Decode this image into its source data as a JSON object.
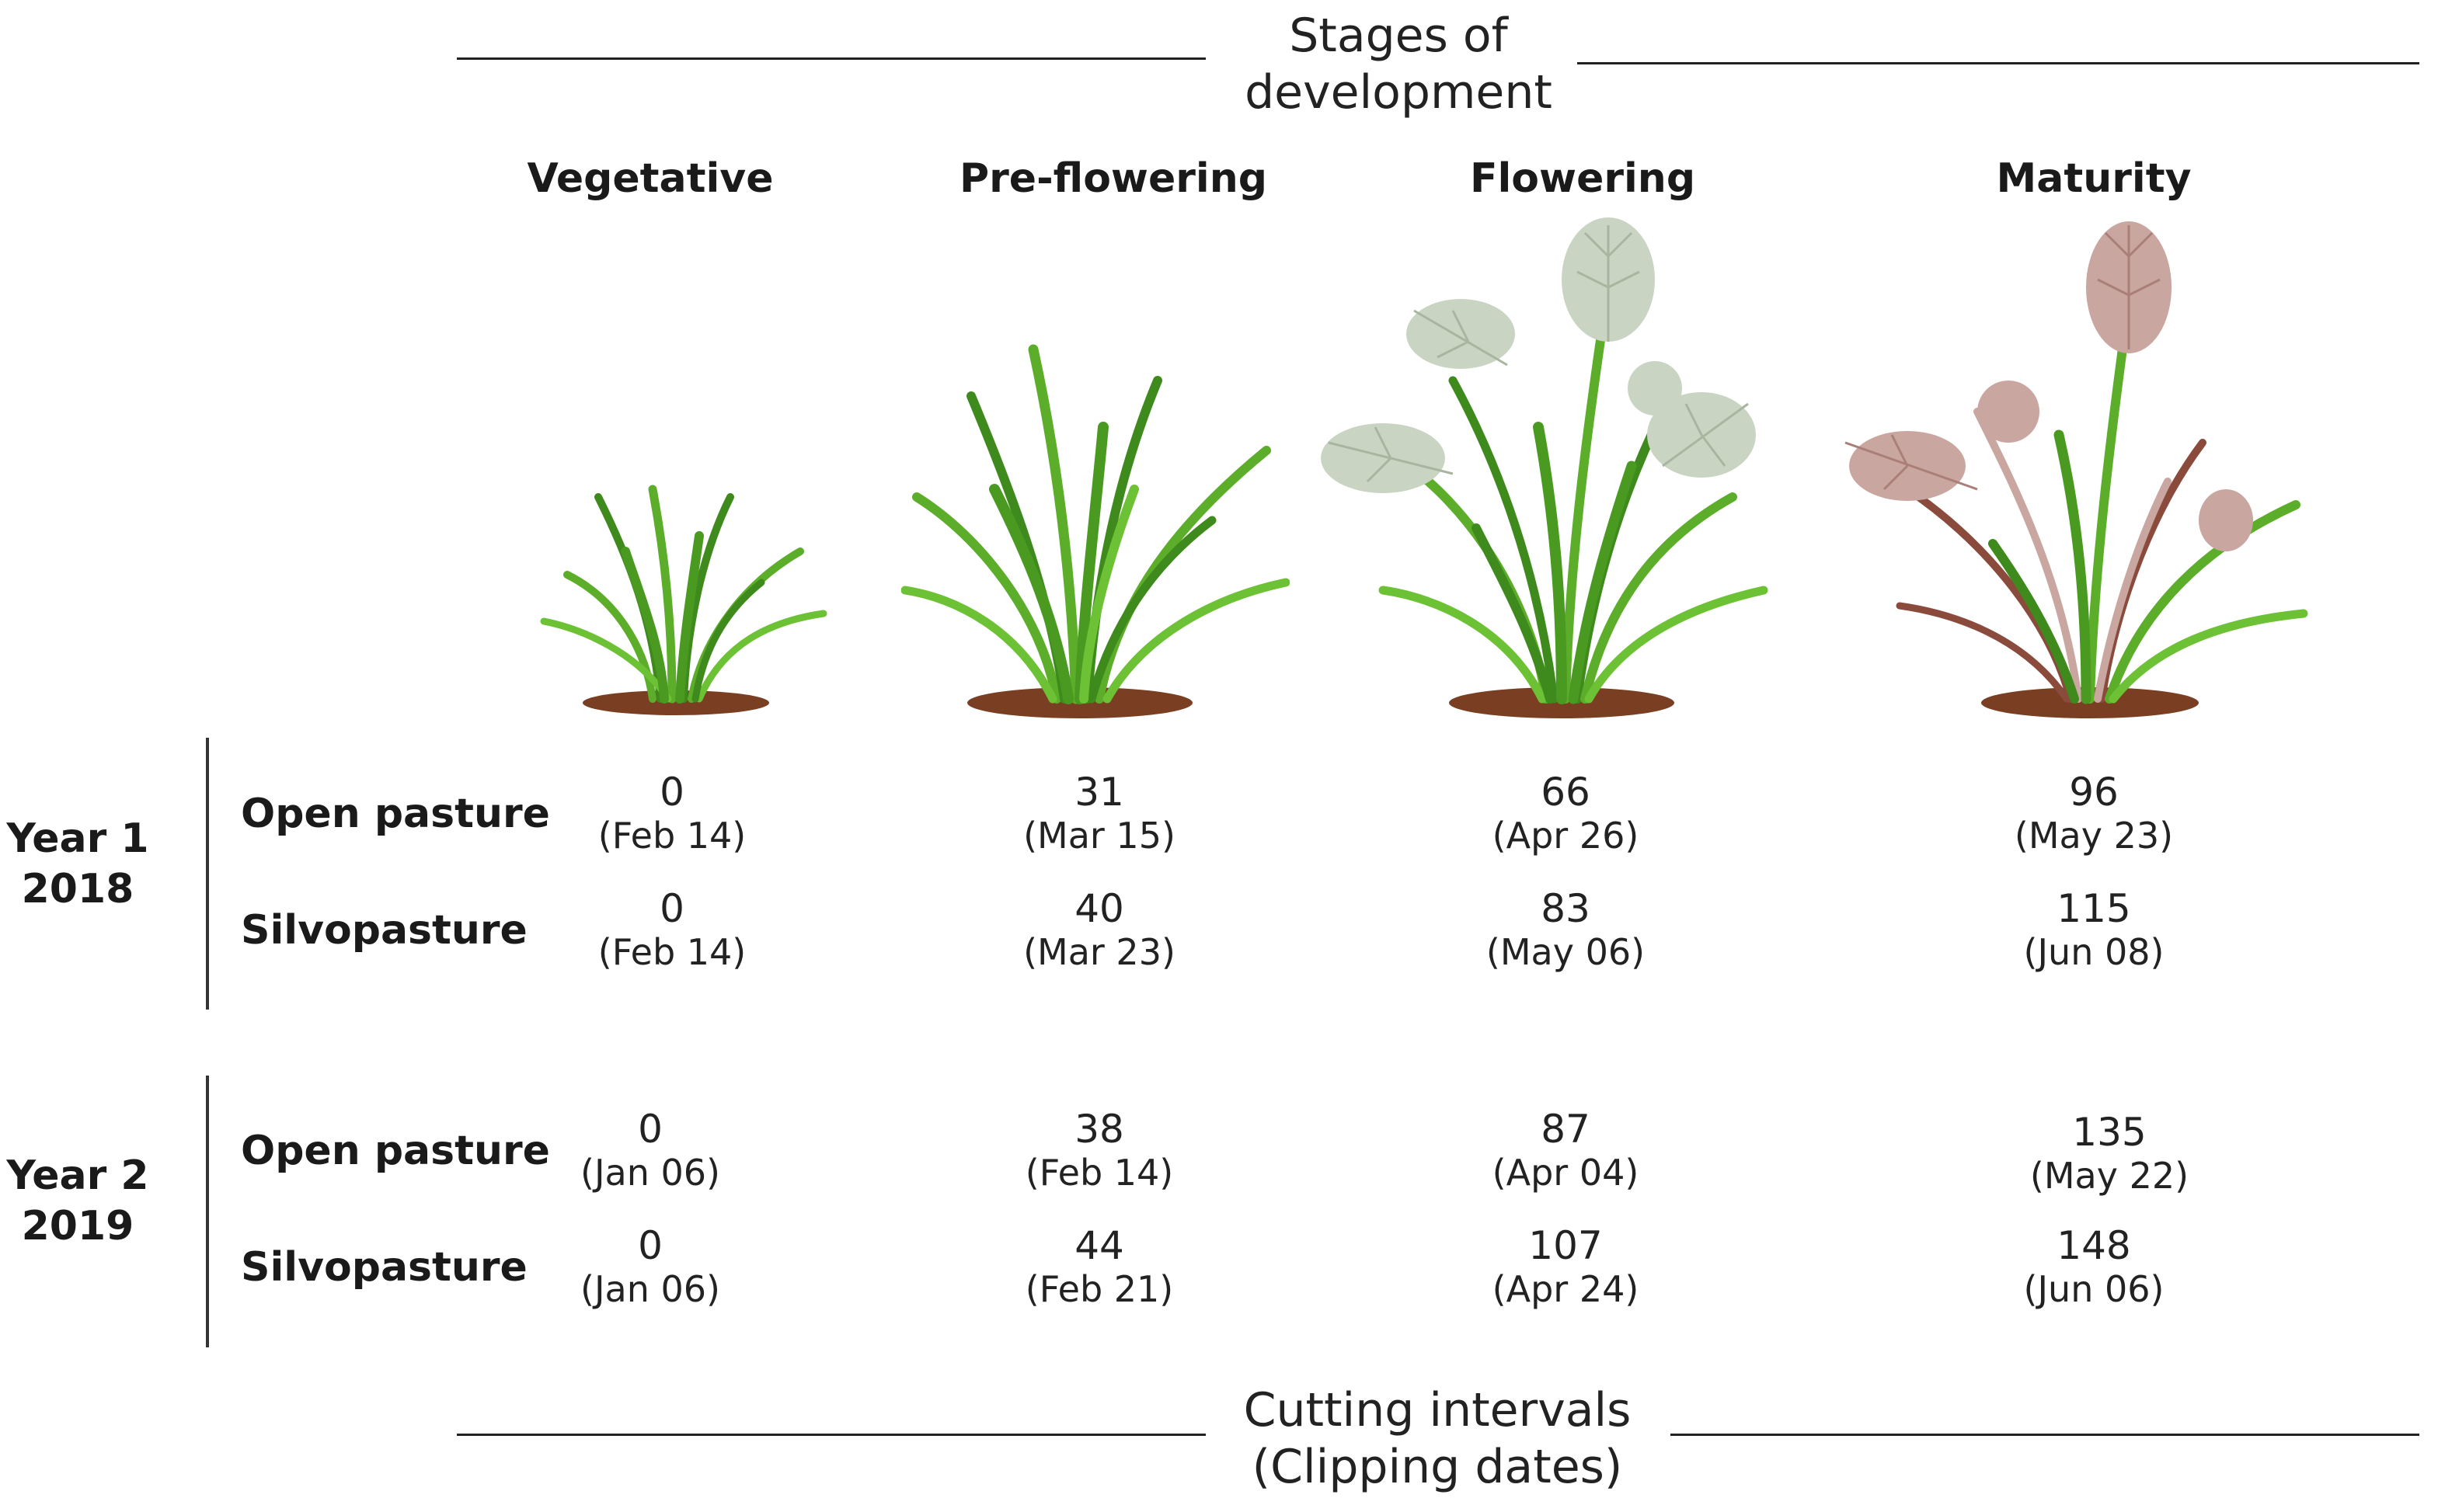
{
  "header": {
    "line1": "Stages of",
    "line2": "development"
  },
  "stages": [
    {
      "label": "Vegetative",
      "icon": "vegetative-grass-icon"
    },
    {
      "label": "Pre-flowering",
      "icon": "pre-flowering-grass-icon"
    },
    {
      "label": "Flowering",
      "icon": "flowering-grass-icon"
    },
    {
      "label": "Maturity",
      "icon": "maturity-grass-icon"
    }
  ],
  "years": [
    {
      "line1": "Year 1",
      "line2": "2018",
      "rows": [
        {
          "treatment": "Open pasture",
          "cells": [
            {
              "days": "0",
              "date": "(Feb 14)"
            },
            {
              "days": "31",
              "date": "(Mar 15)"
            },
            {
              "days": "66",
              "date": "(Apr 26)"
            },
            {
              "days": "96",
              "date": "(May 23)"
            }
          ]
        },
        {
          "treatment": "Silvopasture",
          "cells": [
            {
              "days": "0",
              "date": "(Feb 14)"
            },
            {
              "days": "40",
              "date": "(Mar 23)"
            },
            {
              "days": "83",
              "date": "(May 06)"
            },
            {
              "days": "115",
              "date": "(Jun 08)"
            }
          ]
        }
      ]
    },
    {
      "line1": "Year 2",
      "line2": "2019",
      "rows": [
        {
          "treatment": "Open pasture",
          "cells": [
            {
              "days": "0",
              "date": "(Jan 06)"
            },
            {
              "days": "38",
              "date": "(Feb 14)"
            },
            {
              "days": "87",
              "date": "(Apr 04)"
            },
            {
              "days": "135",
              "date": "(May 22)"
            }
          ]
        },
        {
          "treatment": "Silvopasture",
          "cells": [
            {
              "days": "0",
              "date": "(Jan 06)"
            },
            {
              "days": "44",
              "date": "(Feb 21)"
            },
            {
              "days": "107",
              "date": "(Apr 24)"
            },
            {
              "days": "148",
              "date": "(Jun 06)"
            }
          ]
        }
      ]
    }
  ],
  "footer": {
    "line1": "Cutting intervals",
    "line2": "(Clipping dates)"
  },
  "colors": {
    "grass": "#5cae2a",
    "grass_dark": "#3e8a1c",
    "soil": "#7a3f22",
    "flower_green": "#c9d4c2",
    "flower_pink": "#c9a6a0",
    "dry_stem": "#8a4b3c"
  }
}
